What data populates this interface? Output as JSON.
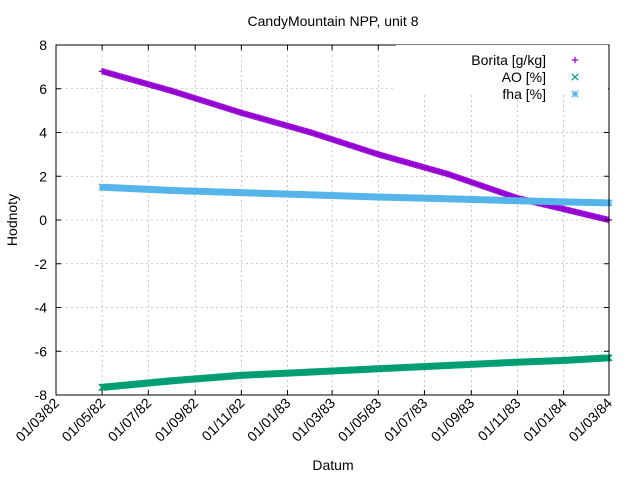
{
  "chart_data": {
    "type": "scatter",
    "title": "CandyMountain NPP, unit 8",
    "xlabel": "Datum",
    "ylabel": "Hodnoty",
    "ylim": [
      -8,
      8
    ],
    "yticks": [
      -8,
      -6,
      -4,
      -2,
      0,
      2,
      4,
      6,
      8
    ],
    "xlim": [
      "1982-03-01",
      "1984-03-01"
    ],
    "xticks": [
      "01/03/82",
      "01/05/82",
      "01/07/82",
      "01/09/82",
      "01/11/82",
      "01/01/83",
      "01/03/83",
      "01/05/83",
      "01/07/83",
      "01/09/83",
      "01/11/83",
      "01/01/84",
      "01/03/84"
    ],
    "grid": true,
    "legend_position": "top-right",
    "series": [
      {
        "name": "Borita [g/kg]",
        "marker": "+",
        "color": "#9400d3",
        "x": [
          "1982-05-01",
          "1982-08-01",
          "1982-11-01",
          "1983-02-01",
          "1983-05-01",
          "1983-08-01",
          "1983-11-01",
          "1984-01-01",
          "1984-03-01"
        ],
        "y": [
          6.8,
          5.9,
          4.9,
          4.0,
          3.0,
          2.1,
          1.0,
          0.5,
          0.0
        ]
      },
      {
        "name": "AO [%]",
        "marker": "x",
        "color": "#009e73",
        "x": [
          "1982-05-01",
          "1982-08-01",
          "1982-11-01",
          "1983-02-01",
          "1983-05-01",
          "1983-08-01",
          "1983-11-01",
          "1984-01-01",
          "1984-03-01"
        ],
        "y": [
          -7.65,
          -7.35,
          -7.1,
          -6.95,
          -6.8,
          -6.65,
          -6.5,
          -6.42,
          -6.3
        ]
      },
      {
        "name": "fha [%]",
        "marker": "*",
        "color": "#56b4e9",
        "x": [
          "1982-05-01",
          "1982-08-01",
          "1982-11-01",
          "1983-02-01",
          "1983-05-01",
          "1983-08-01",
          "1983-11-01",
          "1984-01-01",
          "1984-03-01"
        ],
        "y": [
          1.5,
          1.35,
          1.25,
          1.15,
          1.05,
          0.97,
          0.88,
          0.83,
          0.78
        ]
      }
    ]
  }
}
